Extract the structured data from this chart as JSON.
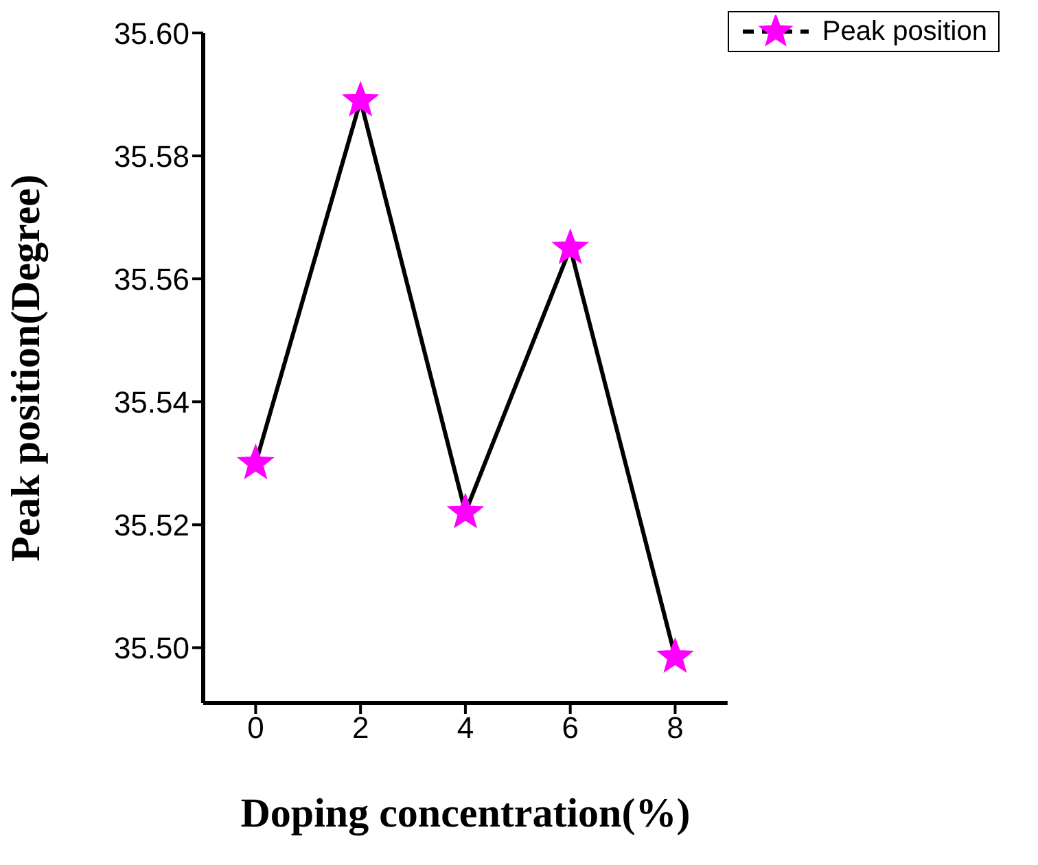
{
  "chart_data": {
    "type": "line",
    "xlabel": "Doping concentration(%)",
    "ylabel": "Peak position(Degree)",
    "x": [
      0,
      2,
      4,
      6,
      8
    ],
    "series": [
      {
        "name": "Peak position",
        "color": "#ff00ff",
        "values": [
          35.53,
          35.589,
          35.522,
          35.565,
          35.4985
        ]
      }
    ],
    "xlim": [
      -1,
      9
    ],
    "xticks": [
      0,
      2,
      4,
      6,
      8
    ],
    "ylim": [
      35.491,
      35.6
    ],
    "yticks": [
      {
        "value": 35.5,
        "label": "35.50"
      },
      {
        "value": 35.52,
        "label": "35.52"
      },
      {
        "value": 35.54,
        "label": "35.54"
      },
      {
        "value": 35.56,
        "label": "35.56"
      },
      {
        "value": 35.58,
        "label": "35.58"
      },
      {
        "value": 35.6,
        "label": "35.60"
      }
    ],
    "marker": "star",
    "line_style": "solid",
    "legend": "top right",
    "grid": false
  }
}
